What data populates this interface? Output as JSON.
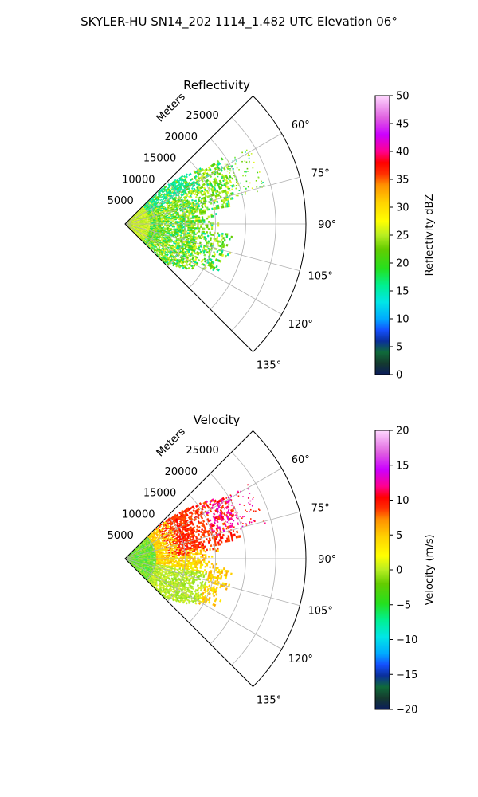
{
  "figure_title": "SKYLER-HU  SN14_202  1114_1.482 UTC Elevation 06°",
  "chart_data": [
    {
      "type": "heatmap",
      "subtype": "polar-sector",
      "title": "Reflectivity",
      "radial_label": "Meters",
      "theta_range_deg": [
        45,
        135
      ],
      "r_max": 30000,
      "r_ticks": [
        5000,
        10000,
        15000,
        20000,
        25000
      ],
      "theta_ticks": [
        "60°",
        "75°",
        "90°",
        "105°",
        "120°",
        "135°"
      ],
      "grid": true,
      "colorbar": {
        "label": "Reflectivity dBZ",
        "min": 0,
        "max": 50,
        "ticks": [
          "0",
          "5",
          "10",
          "15",
          "20",
          "25",
          "30",
          "35",
          "40",
          "45",
          "50"
        ]
      },
      "data_summary": "Returns from about 0 to 18000 m; near range 20–28 dBZ (green/yellow), 15 dBZ band near 60°, scattered 20–25 dBZ echoes beyond 15000 m."
    },
    {
      "type": "heatmap",
      "subtype": "polar-sector",
      "title": "Velocity",
      "radial_label": "Meters",
      "theta_range_deg": [
        45,
        135
      ],
      "r_max": 30000,
      "r_ticks": [
        5000,
        10000,
        15000,
        20000,
        25000
      ],
      "theta_ticks": [
        "60°",
        "75°",
        "90°",
        "105°",
        "120°",
        "135°"
      ],
      "grid": true,
      "colorbar": {
        "label": "Velocity (m/s)",
        "min": -20,
        "max": 20,
        "ticks": [
          "-20",
          "-15",
          "-10",
          "-5",
          "0",
          "5",
          "10",
          "15",
          "20"
        ]
      },
      "data_summary": "Near range about -8 m/s (green); 0–5 m/s (yellow/orange) across the sector; 10–12 m/s (red) at 55–80° beyond 10000 m; ~15 m/s (magenta) patches at far range near 60–75°."
    }
  ]
}
